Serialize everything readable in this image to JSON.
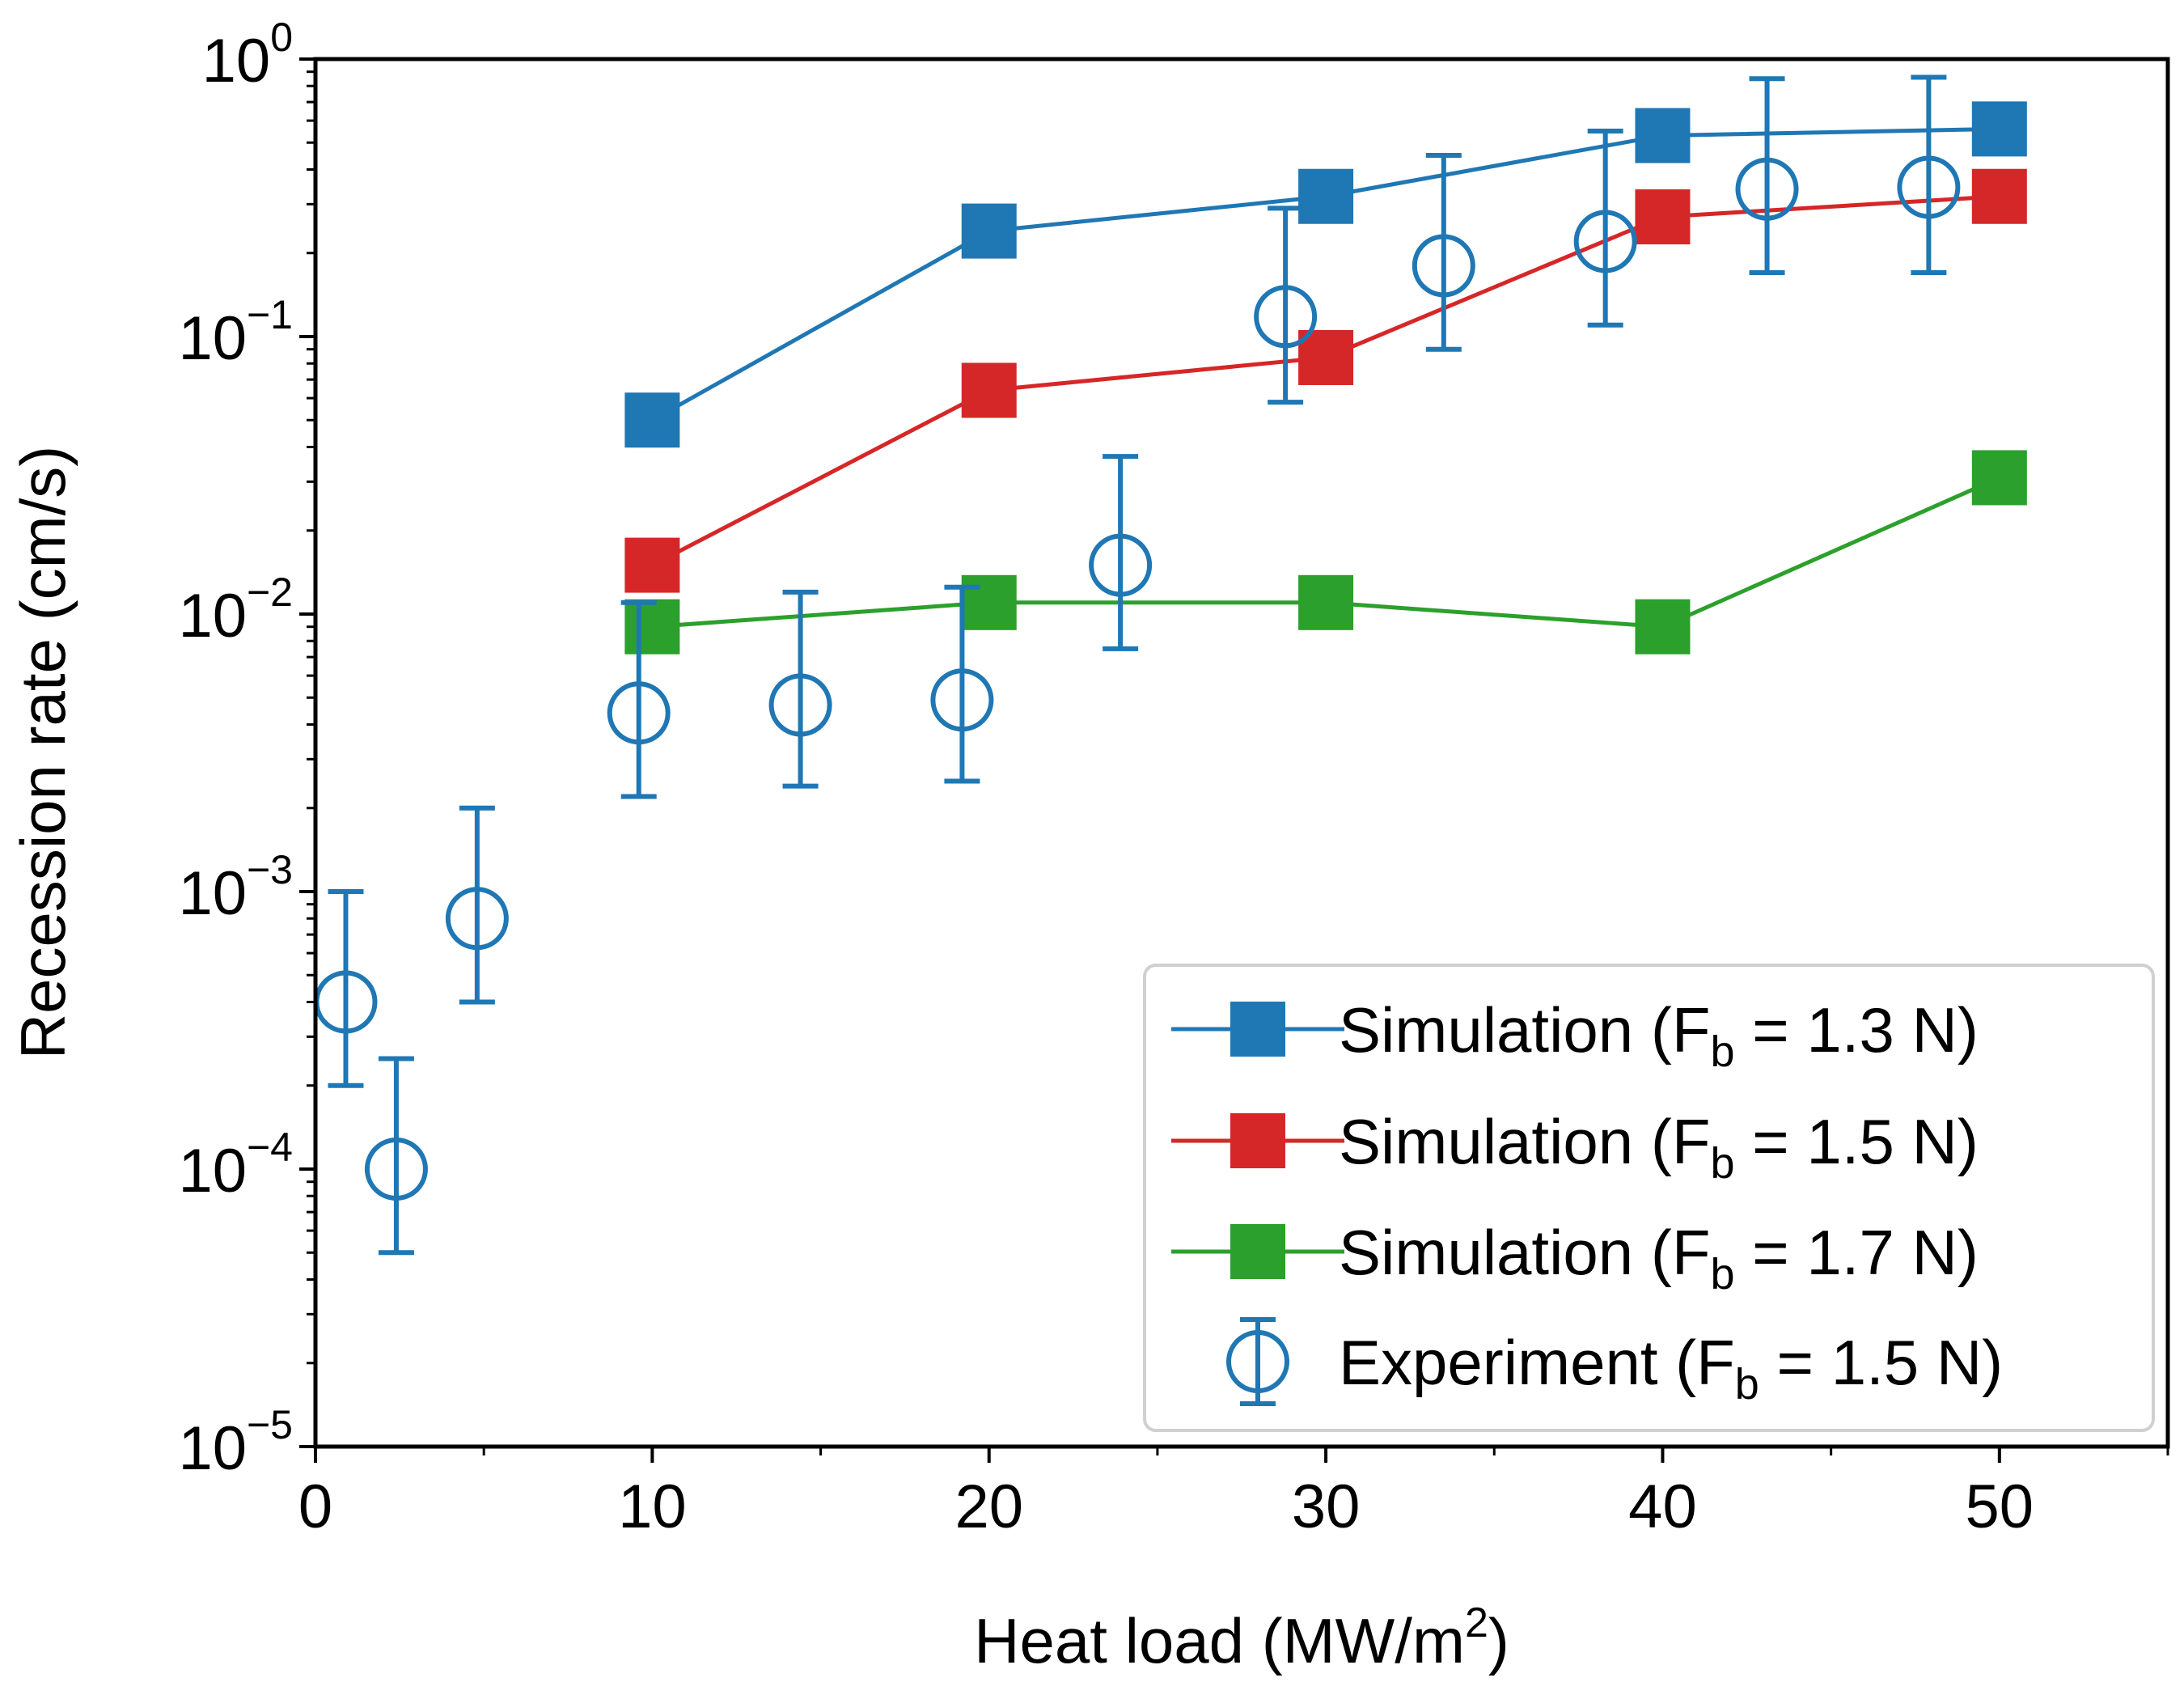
{
  "chart_data": {
    "type": "scatter",
    "title": "",
    "xlabel": {
      "main": "Heat load (MW/m",
      "sup": "2",
      "tail": ")"
    },
    "ylabel": "Recession rate (cm/s)",
    "x_scale": "linear",
    "y_scale": "log",
    "xlim": [
      0,
      55
    ],
    "ylim": [
      1e-05,
      1
    ],
    "x_ticks": [
      0,
      10,
      20,
      30,
      40,
      50
    ],
    "x_tick_labels": [
      "0",
      "10",
      "20",
      "30",
      "40",
      "50"
    ],
    "y_ticks": [
      1e-05,
      0.0001,
      0.001,
      0.01,
      0.1,
      1
    ],
    "y_tick_labels": [
      {
        "base": "10",
        "exp": "−5"
      },
      {
        "base": "10",
        "exp": "−4"
      },
      {
        "base": "10",
        "exp": "−3"
      },
      {
        "base": "10",
        "exp": "−2"
      },
      {
        "base": "10",
        "exp": "−1"
      },
      {
        "base": "10",
        "exp": "0"
      }
    ],
    "grid": false,
    "legend_position": "bottom-right",
    "series": [
      {
        "name": "Simulation (F_b = 1.3 N)",
        "legend": {
          "pre": "Simulation (F",
          "sub": "b",
          "post": " = 1.3 N)"
        },
        "color": "#1f77b4",
        "marker": "square",
        "line": true,
        "x": [
          10,
          20,
          30,
          40,
          50
        ],
        "y": [
          0.05,
          0.24,
          0.32,
          0.53,
          0.56
        ]
      },
      {
        "name": "Simulation (F_b = 1.5 N)",
        "legend": {
          "pre": "Simulation (F",
          "sub": "b",
          "post": " = 1.5 N)"
        },
        "color": "#d62728",
        "marker": "square",
        "line": true,
        "x": [
          10,
          20,
          30,
          40,
          50
        ],
        "y": [
          0.015,
          0.064,
          0.084,
          0.27,
          0.32
        ]
      },
      {
        "name": "Simulation (F_b = 1.7 N)",
        "legend": {
          "pre": "Simulation (F",
          "sub": "b",
          "post": " = 1.7 N)"
        },
        "color": "#2ca02c",
        "marker": "square",
        "line": true,
        "x": [
          10,
          20,
          30,
          40,
          50
        ],
        "y": [
          0.009,
          0.011,
          0.011,
          0.009,
          0.031
        ]
      },
      {
        "name": "Experiment (F_b = 1.5 N)",
        "legend": {
          "pre": "Experiment (F",
          "sub": "b",
          "post": " = 1.5 N)"
        },
        "color": "#1f77b4",
        "marker": "open-circle",
        "line": false,
        "x": [
          0.9,
          2.4,
          4.8,
          9.6,
          14.4,
          19.2,
          23.9,
          28.8,
          33.5,
          38.3,
          43.1,
          47.9
        ],
        "y": [
          0.0004,
          0.0001,
          0.0008,
          0.0044,
          0.0047,
          0.0049,
          0.015,
          0.118,
          0.18,
          0.22,
          0.34,
          0.345
        ],
        "y_lower": [
          0.0002,
          5e-05,
          0.0004,
          0.0022,
          0.0024,
          0.0025,
          0.0075,
          0.058,
          0.09,
          0.11,
          0.17,
          0.17
        ],
        "y_upper": [
          0.001,
          0.00025,
          0.002,
          0.011,
          0.012,
          0.0125,
          0.037,
          0.29,
          0.45,
          0.55,
          0.85,
          0.86
        ]
      }
    ]
  }
}
